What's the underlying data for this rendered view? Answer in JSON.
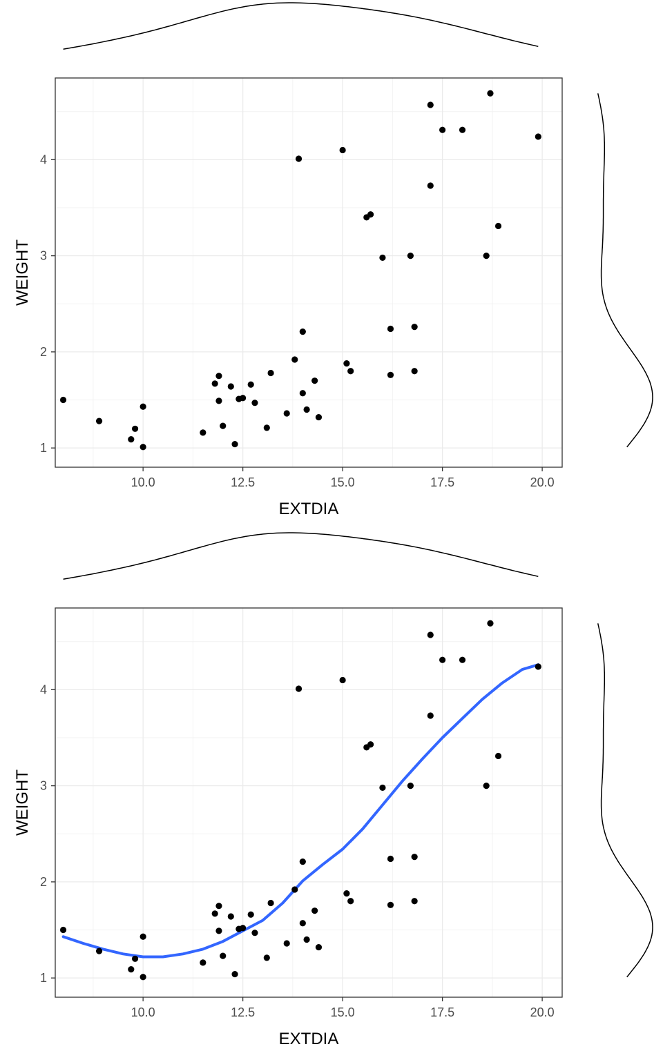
{
  "chart_data": [
    {
      "type": "scatter",
      "xlabel": "EXTDIA",
      "ylabel": "WEIGHT",
      "xlim": [
        7.8,
        20.5
      ],
      "ylim": [
        0.8,
        4.85
      ],
      "x_ticks": [
        "10.0",
        "12.5",
        "15.0",
        "17.5",
        "20.0"
      ],
      "y_ticks": [
        "1",
        "2",
        "3",
        "4"
      ],
      "grid": true,
      "marginal_density": [
        "top",
        "right"
      ],
      "point_color": "#000000",
      "smooth": null,
      "points": [
        [
          8.0,
          1.5
        ],
        [
          8.9,
          1.28
        ],
        [
          9.7,
          1.09
        ],
        [
          9.8,
          1.2
        ],
        [
          10.0,
          1.43
        ],
        [
          10.0,
          1.01
        ],
        [
          11.5,
          1.16
        ],
        [
          11.8,
          1.67
        ],
        [
          11.9,
          1.75
        ],
        [
          11.9,
          1.49
        ],
        [
          12.0,
          1.23
        ],
        [
          12.2,
          1.64
        ],
        [
          12.3,
          1.04
        ],
        [
          12.4,
          1.51
        ],
        [
          12.5,
          1.52
        ],
        [
          12.7,
          1.66
        ],
        [
          12.8,
          1.47
        ],
        [
          13.1,
          1.21
        ],
        [
          13.2,
          1.78
        ],
        [
          13.6,
          1.36
        ],
        [
          13.8,
          1.92
        ],
        [
          13.9,
          4.01
        ],
        [
          14.0,
          2.21
        ],
        [
          14.0,
          1.57
        ],
        [
          14.1,
          1.4
        ],
        [
          14.3,
          1.7
        ],
        [
          14.4,
          1.32
        ],
        [
          15.0,
          4.1
        ],
        [
          15.1,
          1.88
        ],
        [
          15.2,
          1.8
        ],
        [
          15.6,
          3.4
        ],
        [
          15.7,
          3.43
        ],
        [
          16.0,
          2.98
        ],
        [
          16.2,
          2.24
        ],
        [
          16.2,
          1.76
        ],
        [
          16.7,
          3.0
        ],
        [
          16.8,
          2.26
        ],
        [
          16.8,
          1.8
        ],
        [
          17.2,
          4.57
        ],
        [
          17.2,
          3.73
        ],
        [
          17.5,
          4.31
        ],
        [
          18.0,
          4.31
        ],
        [
          18.6,
          3.0
        ],
        [
          18.7,
          4.69
        ],
        [
          18.9,
          3.31
        ],
        [
          19.9,
          4.24
        ]
      ]
    },
    {
      "type": "scatter",
      "xlabel": "EXTDIA",
      "ylabel": "WEIGHT",
      "xlim": [
        7.8,
        20.5
      ],
      "ylim": [
        0.8,
        4.85
      ],
      "x_ticks": [
        "10.0",
        "12.5",
        "15.0",
        "17.5",
        "20.0"
      ],
      "y_ticks": [
        "1",
        "2",
        "3",
        "4"
      ],
      "grid": true,
      "marginal_density": [
        "top",
        "right"
      ],
      "point_color": "#000000",
      "smooth_color": "#3366FF",
      "smooth": [
        [
          8.0,
          1.43
        ],
        [
          8.5,
          1.36
        ],
        [
          9.0,
          1.3
        ],
        [
          9.5,
          1.25
        ],
        [
          10.0,
          1.22
        ],
        [
          10.5,
          1.22
        ],
        [
          11.0,
          1.25
        ],
        [
          11.5,
          1.3
        ],
        [
          12.0,
          1.38
        ],
        [
          12.5,
          1.49
        ],
        [
          13.0,
          1.6
        ],
        [
          13.5,
          1.78
        ],
        [
          14.0,
          2.01
        ],
        [
          14.5,
          2.18
        ],
        [
          15.0,
          2.34
        ],
        [
          15.5,
          2.55
        ],
        [
          16.0,
          2.8
        ],
        [
          16.5,
          3.05
        ],
        [
          17.0,
          3.28
        ],
        [
          17.5,
          3.5
        ],
        [
          18.0,
          3.7
        ],
        [
          18.5,
          3.9
        ],
        [
          19.0,
          4.07
        ],
        [
          19.5,
          4.21
        ],
        [
          19.9,
          4.26
        ]
      ],
      "points": [
        [
          8.0,
          1.5
        ],
        [
          8.9,
          1.28
        ],
        [
          9.7,
          1.09
        ],
        [
          9.8,
          1.2
        ],
        [
          10.0,
          1.43
        ],
        [
          10.0,
          1.01
        ],
        [
          11.5,
          1.16
        ],
        [
          11.8,
          1.67
        ],
        [
          11.9,
          1.75
        ],
        [
          11.9,
          1.49
        ],
        [
          12.0,
          1.23
        ],
        [
          12.2,
          1.64
        ],
        [
          12.3,
          1.04
        ],
        [
          12.4,
          1.51
        ],
        [
          12.5,
          1.52
        ],
        [
          12.7,
          1.66
        ],
        [
          12.8,
          1.47
        ],
        [
          13.1,
          1.21
        ],
        [
          13.2,
          1.78
        ],
        [
          13.6,
          1.36
        ],
        [
          13.8,
          1.92
        ],
        [
          13.9,
          4.01
        ],
        [
          14.0,
          2.21
        ],
        [
          14.0,
          1.57
        ],
        [
          14.1,
          1.4
        ],
        [
          14.3,
          1.7
        ],
        [
          14.4,
          1.32
        ],
        [
          15.0,
          4.1
        ],
        [
          15.1,
          1.88
        ],
        [
          15.2,
          1.8
        ],
        [
          15.6,
          3.4
        ],
        [
          15.7,
          3.43
        ],
        [
          16.0,
          2.98
        ],
        [
          16.2,
          2.24
        ],
        [
          16.2,
          1.76
        ],
        [
          16.7,
          3.0
        ],
        [
          16.8,
          2.26
        ],
        [
          16.8,
          1.8
        ],
        [
          17.2,
          4.57
        ],
        [
          17.2,
          3.73
        ],
        [
          17.5,
          4.31
        ],
        [
          18.0,
          4.31
        ],
        [
          18.6,
          3.0
        ],
        [
          18.7,
          4.69
        ],
        [
          18.9,
          3.31
        ],
        [
          19.9,
          4.24
        ]
      ]
    }
  ]
}
